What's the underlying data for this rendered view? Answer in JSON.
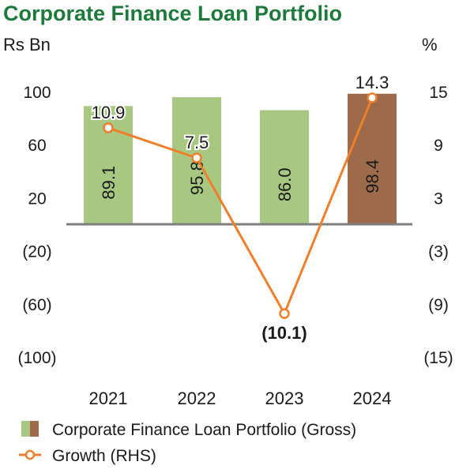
{
  "chart_data": {
    "type": "bar+line",
    "title": "Corporate Finance Loan Portfolio",
    "left_unit": "Rs Bn",
    "right_unit": "%",
    "categories": [
      "2021",
      "2022",
      "2023",
      "2024"
    ],
    "left_axis": {
      "range": [
        -100,
        100
      ],
      "ticks": [
        100,
        60,
        20,
        -20,
        -60,
        -100
      ],
      "tick_labels": [
        "100",
        "60",
        "20",
        "(20)",
        "(60)",
        "(100)"
      ]
    },
    "right_axis": {
      "range": [
        -15,
        15
      ],
      "ticks": [
        15,
        9,
        3,
        -3,
        -9,
        -15
      ],
      "tick_labels": [
        "15",
        "9",
        "3",
        "(3)",
        "(9)",
        "(15)"
      ]
    },
    "series": [
      {
        "name": "Corporate Finance Loan Portfolio (Gross)",
        "kind": "bar",
        "axis": "left",
        "values": [
          89.1,
          95.8,
          86.0,
          98.4
        ],
        "labels": [
          "89.1",
          "95.8",
          "86.0",
          "98.4"
        ],
        "colors": [
          "#a8c882",
          "#a8c882",
          "#a8c882",
          "#9e6b4a"
        ]
      },
      {
        "name": "Growth (RHS)",
        "kind": "line",
        "axis": "right",
        "values": [
          10.9,
          7.5,
          -10.1,
          14.3
        ],
        "labels": [
          "10.9",
          "7.5",
          "(10.1)",
          "14.3"
        ],
        "color": "#f07f2c"
      }
    ],
    "grid": false,
    "legend_position": "bottom-left"
  }
}
